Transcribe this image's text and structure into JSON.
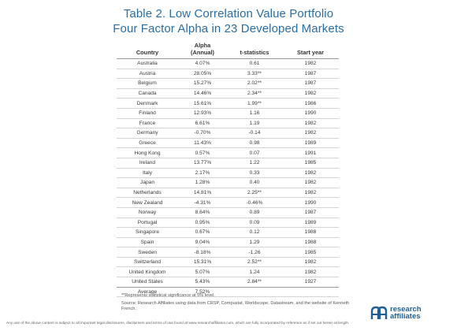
{
  "title": {
    "line1": "Table 2. Low Correlation Value Portfolio",
    "line2": "Four Factor Alpha in 23 Developed Markets"
  },
  "table": {
    "headers": {
      "country": "Country",
      "alpha_line1": "Alpha",
      "alpha_line2": "(Annual)",
      "tstat": "t-statistics",
      "start": "Start year"
    },
    "rows": [
      {
        "country": "Australia",
        "alpha": "4.07%",
        "t": "0.61",
        "year": "1982"
      },
      {
        "country": "Austria",
        "alpha": "28.05%",
        "t": "3.33**",
        "year": "1987"
      },
      {
        "country": "Belgium",
        "alpha": "15.27%",
        "t": "2.02**",
        "year": "1987"
      },
      {
        "country": "Canada",
        "alpha": "14.46%",
        "t": "2.34**",
        "year": "1982"
      },
      {
        "country": "Denmark",
        "alpha": "15.61%",
        "t": "1.99**",
        "year": "1986"
      },
      {
        "country": "Finland",
        "alpha": "12.93%",
        "t": "1.16",
        "year": "1990"
      },
      {
        "country": "France",
        "alpha": "6.61%",
        "t": "1.19",
        "year": "1982"
      },
      {
        "country": "Germany",
        "alpha": "-0.70%",
        "t": "-0.14",
        "year": "1982"
      },
      {
        "country": "Greece",
        "alpha": "11.43%",
        "t": "0.98",
        "year": "1989"
      },
      {
        "country": "Hong Kong",
        "alpha": "0.57%",
        "t": "0.07",
        "year": "1991"
      },
      {
        "country": "Ireland",
        "alpha": "13.77%",
        "t": "1.22",
        "year": "1985"
      },
      {
        "country": "Italy",
        "alpha": "2.17%",
        "t": "0.33",
        "year": "1982"
      },
      {
        "country": "Japan",
        "alpha": "1.28%",
        "t": "0.40",
        "year": "1982"
      },
      {
        "country": "Netherlands",
        "alpha": "14.81%",
        "t": "2.25**",
        "year": "1982"
      },
      {
        "country": "New Zealand",
        "alpha": "-4.31%",
        "t": "-0.46%",
        "year": "1990"
      },
      {
        "country": "Norway",
        "alpha": "8.64%",
        "t": "0.89",
        "year": "1987"
      },
      {
        "country": "Portugal",
        "alpha": "0.95%",
        "t": "0.09",
        "year": "1989"
      },
      {
        "country": "Singapore",
        "alpha": "0.67%",
        "t": "0.12",
        "year": "1988"
      },
      {
        "country": "Spain",
        "alpha": "9.04%",
        "t": "1.29",
        "year": "1988"
      },
      {
        "country": "Sweden",
        "alpha": "-8.18%",
        "t": "-1.26",
        "year": "1985"
      },
      {
        "country": "Switzerland",
        "alpha": "15.31%",
        "t": "2.52**",
        "year": "1982"
      },
      {
        "country": "United Kingdom",
        "alpha": "5.07%",
        "t": "1.24",
        "year": "1982"
      },
      {
        "country": "United States",
        "alpha": "5.43%",
        "t": "2.84**",
        "year": "1927"
      }
    ],
    "average": {
      "label": "Average",
      "alpha": "7.52%"
    }
  },
  "footnotes": {
    "significance": "**Represents statistical significance at 5% level.",
    "source": "Source: Research Affiliates using data from CRSP, Compustat, Worldscope, Datastream, and the website of Kenneth French."
  },
  "logo": {
    "line1": "research",
    "line2": "affiliates"
  },
  "disclaimer": "Any use of the above content is subject to all important legal disclosures, disclaimers and terms of use found at www.researchaffiliates.com, which are fully incorporated by reference as if set out herein at length.",
  "colors": {
    "title": "#2a6ea6",
    "logo": "#1f5f95"
  }
}
